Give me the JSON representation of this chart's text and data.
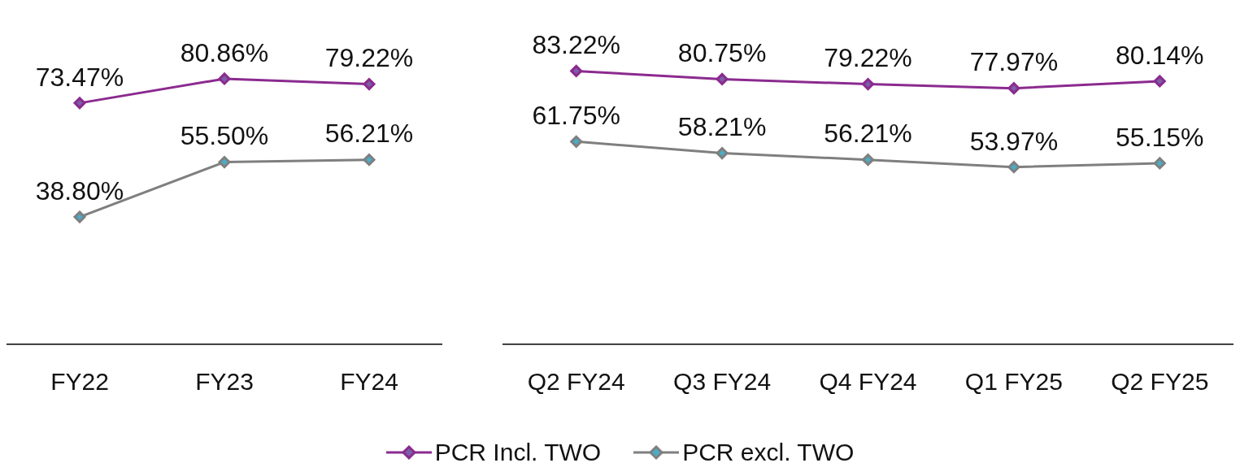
{
  "chart_data": [
    {
      "type": "line",
      "categories": [
        "FY22",
        "FY23",
        "FY24"
      ],
      "tick_labels": "x",
      "grid": false,
      "legend": "bottom",
      "data_labels": true,
      "marker": "diamond",
      "series": [
        {
          "name": "PCR Incl. TWO",
          "color": "#8b2a8f",
          "values": [
            73.47,
            80.86,
            79.22
          ],
          "value_labels": [
            "73.47%",
            "80.86%",
            "79.22%"
          ]
        },
        {
          "name": "PCR excl. TWO",
          "color": "#7f7f7f",
          "values": [
            38.8,
            55.5,
            56.21
          ],
          "value_labels": [
            "38.80%",
            "55.50%",
            "56.21%"
          ]
        }
      ]
    },
    {
      "type": "line",
      "categories": [
        "Q2 FY24",
        "Q3 FY24",
        "Q4 FY24",
        "Q1 FY25",
        "Q2 FY25"
      ],
      "tick_labels": "x",
      "grid": false,
      "data_labels": true,
      "marker": "diamond",
      "series": [
        {
          "color": "#8b2a8f",
          "values": [
            83.22,
            80.75,
            79.22,
            77.97,
            80.14
          ],
          "value_labels": [
            "83.22%",
            "80.75%",
            "79.22%",
            "77.97%",
            "80.14%"
          ]
        },
        {
          "color": "#7f7f7f",
          "values": [
            61.75,
            58.21,
            56.21,
            53.97,
            55.15
          ],
          "value_labels": [
            "61.75%",
            "58.21%",
            "56.21%",
            "53.97%",
            "55.15%"
          ]
        }
      ]
    }
  ]
}
